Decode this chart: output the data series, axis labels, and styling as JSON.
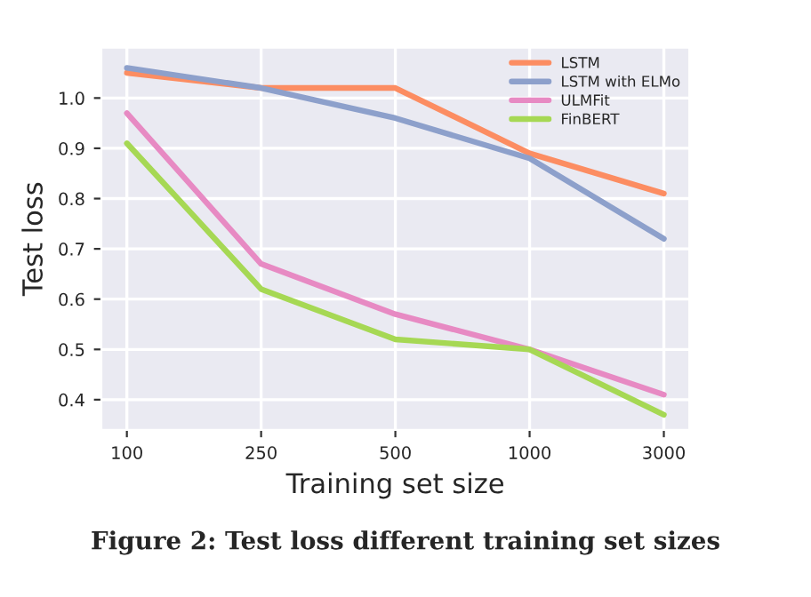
{
  "chart_data": {
    "type": "line",
    "xlabel": "Training set size",
    "ylabel": "Test loss",
    "categories": [
      "100",
      "250",
      "500",
      "1000",
      "3000"
    ],
    "series": [
      {
        "name": "LSTM",
        "color": "#fc8d62",
        "values": [
          1.05,
          1.02,
          1.02,
          0.89,
          0.81
        ]
      },
      {
        "name": "LSTM with ELMo",
        "color": "#8da0cb",
        "values": [
          1.06,
          1.02,
          0.96,
          0.88,
          0.72
        ]
      },
      {
        "name": "ULMFit",
        "color": "#e78ac3",
        "values": [
          0.97,
          0.67,
          0.57,
          0.5,
          0.41
        ]
      },
      {
        "name": "FinBERT",
        "color": "#a6d854",
        "values": [
          0.91,
          0.62,
          0.52,
          0.5,
          0.37
        ]
      }
    ],
    "ylim": [
      0.34,
      1.1
    ],
    "yticks": [
      0.4,
      0.5,
      0.6,
      0.7,
      0.8,
      0.9,
      {
        "value": 1.0,
        "label": "1.0"
      }
    ],
    "grid": true,
    "legend": "top right",
    "marker": "none",
    "line_style": "solid",
    "annotations": [
      "Figure 2: Test loss different training set sizes"
    ]
  }
}
